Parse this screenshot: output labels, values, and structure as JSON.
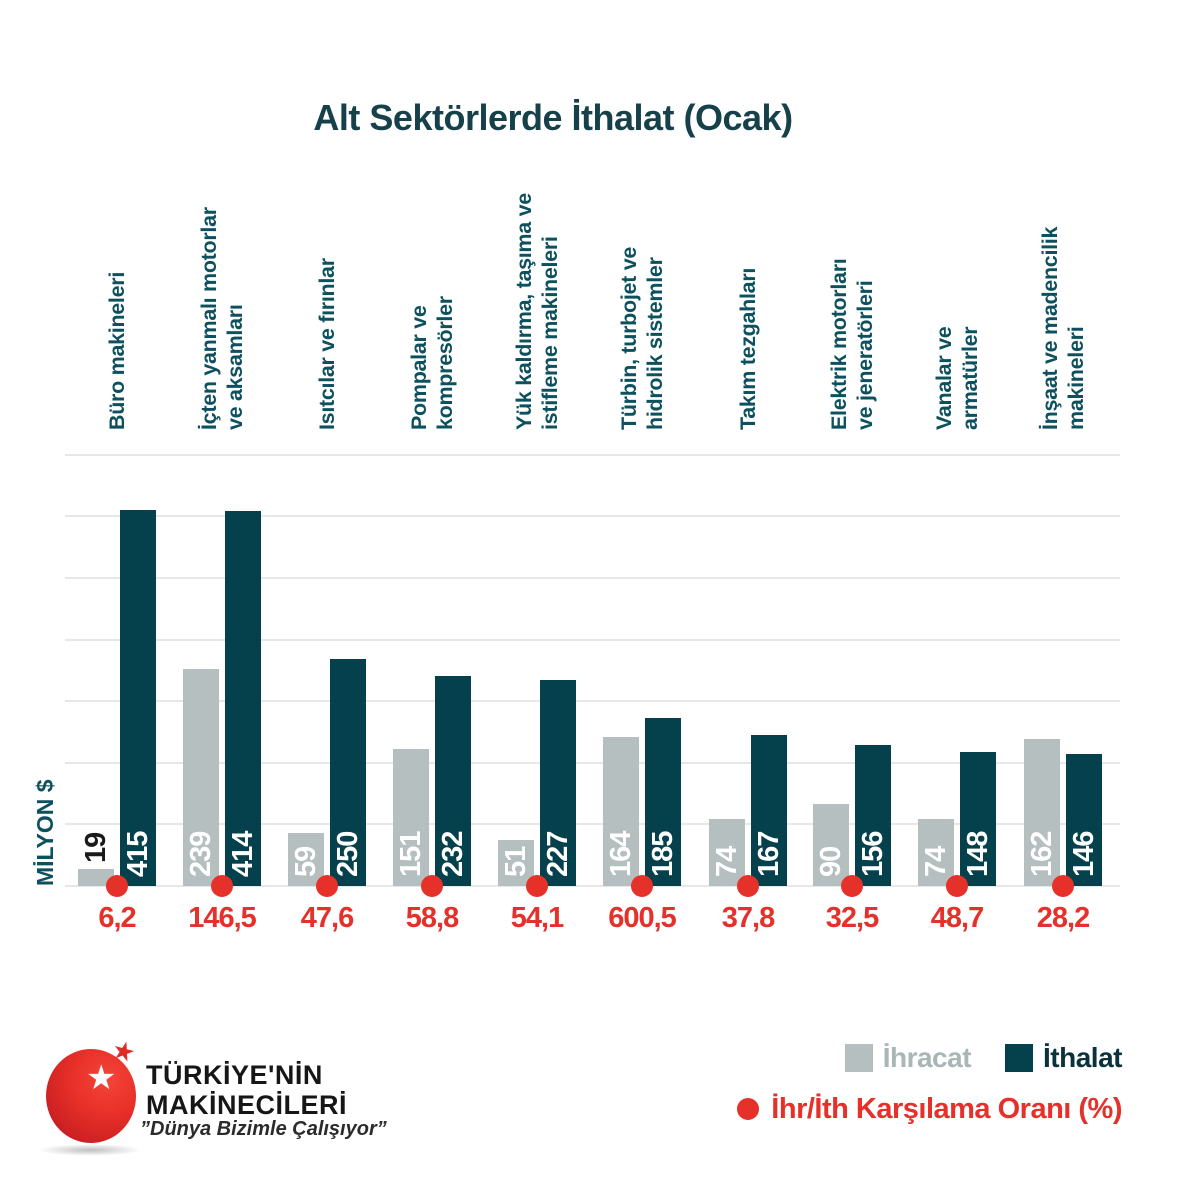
{
  "title": "Alt Sektörlerde İthalat (Ocak)",
  "y_axis_label": "MİLYON $",
  "legend": {
    "ihracat": "İhracat",
    "ithalat": "İthalat",
    "ratio": "İhr/İth Karşılama Oranı (%)"
  },
  "colors": {
    "ihracat_gray": "#b5bfbf",
    "ithalat_teal": "#04414c",
    "ratio_red": "#e53129",
    "title_teal": "#16414a",
    "category_teal": "#0d505e",
    "gridline": "#e7e7e7"
  },
  "icons": {
    "star": "★"
  },
  "logo": {
    "name_line1": "TÜRKİYE'NİN",
    "name_line2": "MAKİNECİLERİ",
    "tagline": "”Dünya Bizimle Çalışıyor”"
  },
  "chart_data": {
    "type": "bar",
    "title": "Alt Sektörlerde İthalat (Ocak)",
    "ylabel": "MİLYON $",
    "grid": true,
    "legend_position": "bottom-right",
    "categories": [
      "Büro makineleri",
      "İçten yanmalı motorlar ve aksamları",
      "Isıtcılar ve fırınlar",
      "Pompalar ve kompresörler",
      "Yük kaldırma, taşıma ve istifleme makineleri",
      "Türbin, turbojet ve hidrolik sistemler",
      "Takım tezgahları",
      "Elektrik motorları ve jeneratörleri",
      "Vanalar ve armatürler",
      "İnşaat ve madencilik makineleri"
    ],
    "category_lines": [
      [
        "Büro makineleri"
      ],
      [
        "İçten yanmalı motorlar",
        "ve aksamları"
      ],
      [
        "Isıtcılar ve fırınlar"
      ],
      [
        "Pompalar ve",
        "kompresörler"
      ],
      [
        "Yük kaldırma, taşıma ve",
        "istifleme makineleri"
      ],
      [
        "Türbin, turbojet ve",
        "hidrolik sistemler"
      ],
      [
        "Takım tezgahları"
      ],
      [
        "Elektrik motorları",
        "ve jeneratörleri"
      ],
      [
        "Vanalar ve",
        "armatürler"
      ],
      [
        "İnşaat ve madencilik",
        "makineleri"
      ]
    ],
    "series": [
      {
        "name": "İhracat",
        "values": [
          19,
          239,
          59,
          151,
          51,
          164,
          74,
          90,
          74,
          162
        ]
      },
      {
        "name": "İthalat",
        "values": [
          415,
          414,
          250,
          232,
          227,
          185,
          167,
          156,
          148,
          146
        ]
      }
    ],
    "ratio_series_name": "İhr/İth Karşılama Oranı (%)",
    "ratio_labels": [
      "6,2",
      "146,5",
      "47,6",
      "58,8",
      "54,1",
      "600,5",
      "37,8",
      "32,5",
      "48,7",
      "28,2"
    ]
  }
}
